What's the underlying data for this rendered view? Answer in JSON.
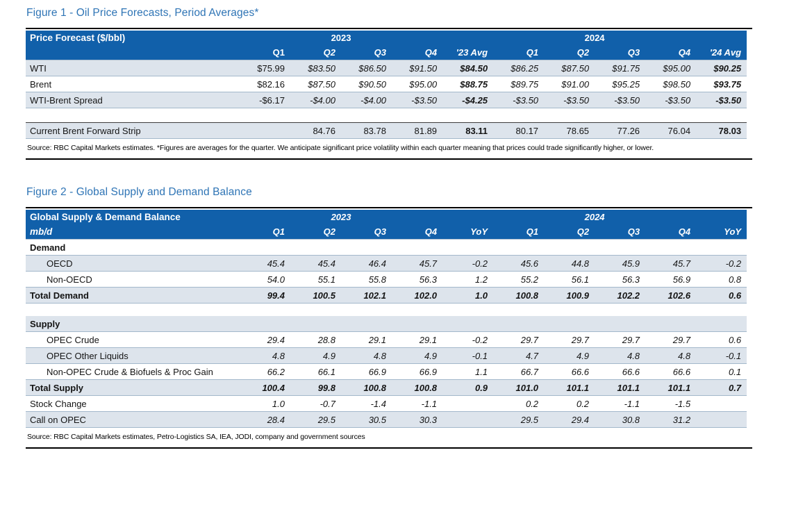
{
  "colors": {
    "header_blue": "#1160AA",
    "title_blue": "#2E74B5",
    "row_stripe": "#DDE4EC",
    "row_line": "#A3B8CB"
  },
  "figure1": {
    "title": "Figure 1 - Oil Price Forecasts, Period Averages*",
    "table": {
      "corner_label": "Price Forecast ($/bbl)",
      "year_groups": [
        "2023",
        "2024"
      ],
      "columns": [
        "Q1",
        "Q2",
        "Q3",
        "Q4",
        "'23 Avg",
        "Q1",
        "Q2",
        "Q3",
        "Q4",
        "'24 Avg"
      ],
      "rows": [
        {
          "label": "WTI",
          "cls": "stripe",
          "values": [
            "$75.99",
            "$83.50",
            "$86.50",
            "$91.50",
            "$84.50",
            "$86.25",
            "$87.50",
            "$91.75",
            "$95.00",
            "$90.25"
          ],
          "styles": [
            "",
            "i",
            "i",
            "i",
            "bi",
            "i",
            "i",
            "i",
            "i",
            "bi"
          ]
        },
        {
          "label": "Brent",
          "cls": "",
          "values": [
            "$82.16",
            "$87.50",
            "$90.50",
            "$95.00",
            "$88.75",
            "$89.75",
            "$91.00",
            "$95.25",
            "$98.50",
            "$93.75"
          ],
          "styles": [
            "",
            "i",
            "i",
            "i",
            "bi",
            "i",
            "i",
            "i",
            "i",
            "bi"
          ]
        },
        {
          "label": "WTI-Brent Spread",
          "cls": "stripe",
          "values": [
            "-$6.17",
            "-$4.00",
            "-$4.00",
            "-$3.50",
            "-$4.25",
            "-$3.50",
            "-$3.50",
            "-$3.50",
            "-$3.50",
            "-$3.50"
          ],
          "styles": [
            "",
            "i",
            "i",
            "i",
            "bi",
            "i",
            "i",
            "i",
            "i",
            "bi"
          ]
        },
        {
          "label": "",
          "cls": "spacer"
        },
        {
          "label": "Current Brent Forward Strip",
          "cls": "stripe topline",
          "values": [
            "",
            "84.76",
            "83.78",
            "81.89",
            "83.11",
            "80.17",
            "78.65",
            "77.26",
            "76.04",
            "78.03"
          ],
          "styles": [
            "",
            "",
            "",
            "",
            "b",
            "",
            "",
            "",
            "",
            "b"
          ]
        }
      ]
    },
    "source": "Source: RBC Capital Markets estimates. *Figures are averages for the quarter. We anticipate significant price volatility within each quarter meaning that prices could trade significantly higher, or lower."
  },
  "figure2": {
    "title": "Figure 2 - Global Supply and Demand Balance",
    "table": {
      "corner_label": "Global Supply & Demand Balance",
      "unit_label": "mb/d",
      "year_groups": [
        "2023",
        "2024"
      ],
      "columns": [
        "Q1",
        "Q2",
        "Q3",
        "Q4",
        "YoY",
        "Q1",
        "Q2",
        "Q3",
        "Q4",
        "YoY"
      ],
      "rows": [
        {
          "label": "Demand",
          "cls": "section",
          "values": [
            "",
            "",
            "",
            "",
            "",
            "",
            "",
            "",
            "",
            ""
          ],
          "styles": [
            "",
            "",
            "",
            "",
            "",
            "",
            "",
            "",
            "",
            ""
          ]
        },
        {
          "label": "OECD",
          "cls": "stripe",
          "indent": true,
          "values": [
            "45.4",
            "45.4",
            "46.4",
            "45.7",
            "-0.2",
            "45.6",
            "44.8",
            "45.9",
            "45.7",
            "-0.2"
          ],
          "styles": [
            "i",
            "i",
            "i",
            "i",
            "i",
            "i",
            "i",
            "i",
            "i",
            "i"
          ]
        },
        {
          "label": "Non-OECD",
          "cls": "",
          "indent": true,
          "values": [
            "54.0",
            "55.1",
            "55.8",
            "56.3",
            "1.2",
            "55.2",
            "56.1",
            "56.3",
            "56.9",
            "0.8"
          ],
          "styles": [
            "i",
            "i",
            "i",
            "i",
            "i",
            "i",
            "i",
            "i",
            "i",
            "i"
          ]
        },
        {
          "label": "Total Demand",
          "cls": "stripe total",
          "values": [
            "99.4",
            "100.5",
            "102.1",
            "102.0",
            "1.0",
            "100.8",
            "100.9",
            "102.2",
            "102.6",
            "0.6"
          ],
          "styles": [
            "bi",
            "bi",
            "bi",
            "bi",
            "bi",
            "bi",
            "bi",
            "bi",
            "bi",
            "bi"
          ]
        },
        {
          "label": "",
          "cls": "spacer"
        },
        {
          "label": "Supply",
          "cls": "stripe section",
          "values": [
            "",
            "",
            "",
            "",
            "",
            "",
            "",
            "",
            "",
            ""
          ],
          "styles": [
            "",
            "",
            "",
            "",
            "",
            "",
            "",
            "",
            "",
            ""
          ]
        },
        {
          "label": "OPEC Crude",
          "cls": "",
          "indent": true,
          "values": [
            "29.4",
            "28.8",
            "29.1",
            "29.1",
            "-0.2",
            "29.7",
            "29.7",
            "29.7",
            "29.7",
            "0.6"
          ],
          "styles": [
            "i",
            "i",
            "i",
            "i",
            "i",
            "i",
            "i",
            "i",
            "i",
            "i"
          ]
        },
        {
          "label": "OPEC Other Liquids",
          "cls": "stripe",
          "indent": true,
          "values": [
            "4.8",
            "4.9",
            "4.8",
            "4.9",
            "-0.1",
            "4.7",
            "4.9",
            "4.8",
            "4.8",
            "-0.1"
          ],
          "styles": [
            "i",
            "i",
            "i",
            "i",
            "i",
            "i",
            "i",
            "i",
            "i",
            "i"
          ]
        },
        {
          "label": "Non-OPEC Crude & Biofuels & Proc Gain",
          "cls": "",
          "indent": true,
          "values": [
            "66.2",
            "66.1",
            "66.9",
            "66.9",
            "1.1",
            "66.7",
            "66.6",
            "66.6",
            "66.6",
            "0.1"
          ],
          "styles": [
            "i",
            "i",
            "i",
            "i",
            "i",
            "i",
            "i",
            "i",
            "i",
            "i"
          ]
        },
        {
          "label": "Total Supply",
          "cls": "stripe total",
          "values": [
            "100.4",
            "99.8",
            "100.8",
            "100.8",
            "0.9",
            "101.0",
            "101.1",
            "101.1",
            "101.1",
            "0.7"
          ],
          "styles": [
            "bi",
            "bi",
            "bi",
            "bi",
            "bi",
            "bi",
            "bi",
            "bi",
            "bi",
            "bi"
          ]
        },
        {
          "label": "Stock Change",
          "cls": "",
          "values": [
            "1.0",
            "-0.7",
            "-1.4",
            "-1.1",
            "",
            "0.2",
            "0.2",
            "-1.1",
            "-1.5",
            ""
          ],
          "styles": [
            "i",
            "i",
            "i",
            "i",
            "i",
            "i",
            "i",
            "i",
            "i",
            "i"
          ]
        },
        {
          "label": "Call on OPEC",
          "cls": "stripe",
          "values": [
            "28.4",
            "29.5",
            "30.5",
            "30.3",
            "",
            "29.5",
            "29.4",
            "30.8",
            "31.2",
            ""
          ],
          "styles": [
            "i",
            "i",
            "i",
            "i",
            "i",
            "i",
            "i",
            "i",
            "i",
            "i"
          ]
        }
      ]
    },
    "source": "Source: RBC Capital Markets estimates, Petro-Logistics SA, IEA, JODI, company and government sources"
  }
}
